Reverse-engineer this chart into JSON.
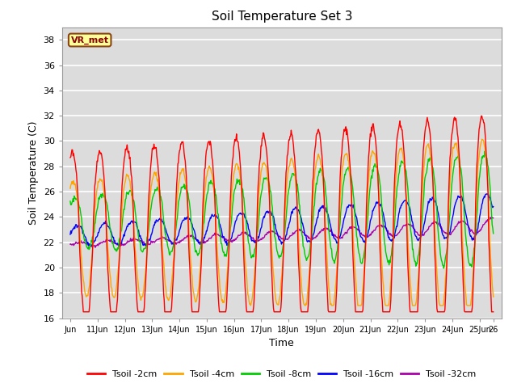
{
  "title": "Soil Temperature Set 3",
  "xlabel": "Time",
  "ylabel": "Soil Temperature (C)",
  "ylim": [
    16,
    39
  ],
  "yticks": [
    16,
    18,
    20,
    22,
    24,
    26,
    28,
    30,
    32,
    34,
    36,
    38
  ],
  "xtick_labels": [
    "Jun",
    "11Jun",
    "12Jun",
    "13Jun",
    "14Jun",
    "15Jun",
    "16Jun",
    "17Jun",
    "18Jun",
    "19Jun",
    "20Jun",
    "21Jun",
    "22Jun",
    "23Jun",
    "24Jun",
    "25Jun",
    "26"
  ],
  "xtick_positions": [
    0,
    1,
    2,
    3,
    4,
    5,
    6,
    7,
    8,
    9,
    10,
    11,
    12,
    13,
    14,
    15,
    15.5
  ],
  "colors": {
    "Tsoil -2cm": "#FF0000",
    "Tsoil -4cm": "#FFA500",
    "Tsoil -8cm": "#00CC00",
    "Tsoil -16cm": "#0000FF",
    "Tsoil -32cm": "#AA00AA"
  },
  "plot_bg": "#DCDCDC",
  "grid_color": "white",
  "annotation_text": "VR_met",
  "annotation_bg": "#FFFF99",
  "annotation_border": "#8B4513"
}
